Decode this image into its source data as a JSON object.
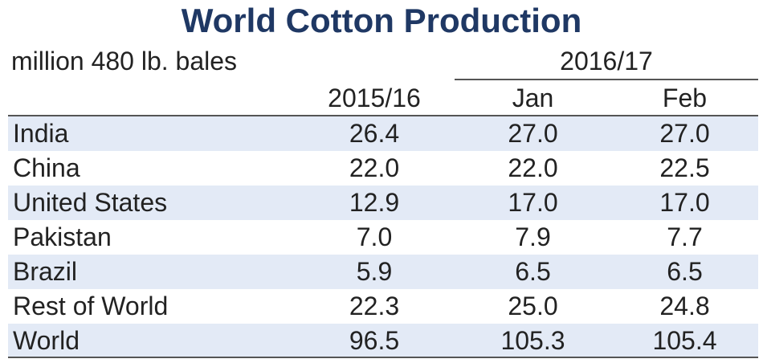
{
  "title": "World Cotton Production",
  "unit_label": "million 480 lb. bales",
  "period_label": "2016/17",
  "columns": [
    "2015/16",
    "Jan",
    "Feb"
  ],
  "colors": {
    "title": "#1f3864",
    "row_shade": "#e3eaf6",
    "text": "#222222",
    "rule": "#555555"
  },
  "chart_data": {
    "type": "table",
    "title": "World Cotton Production",
    "unit": "million 480 lb. bales",
    "column_groups": [
      {
        "label": "2015/16",
        "columns": [
          "2015/16"
        ]
      },
      {
        "label": "2016/17",
        "columns": [
          "Jan",
          "Feb"
        ]
      }
    ],
    "columns": [
      "2015/16",
      "Jan",
      "Feb"
    ],
    "rows": [
      {
        "label": "India",
        "values": [
          "26.4",
          "27.0",
          "27.0"
        ]
      },
      {
        "label": "China",
        "values": [
          "22.0",
          "22.0",
          "22.5"
        ]
      },
      {
        "label": "United States",
        "values": [
          "12.9",
          "17.0",
          "17.0"
        ]
      },
      {
        "label": "Pakistan",
        "values": [
          "7.0",
          "7.9",
          "7.7"
        ]
      },
      {
        "label": "Brazil",
        "values": [
          "5.9",
          "6.5",
          "6.5"
        ]
      },
      {
        "label": "Rest of World",
        "values": [
          "22.3",
          "25.0",
          "24.8"
        ]
      },
      {
        "label": "World",
        "values": [
          "96.5",
          "105.3",
          "105.4"
        ]
      }
    ]
  }
}
